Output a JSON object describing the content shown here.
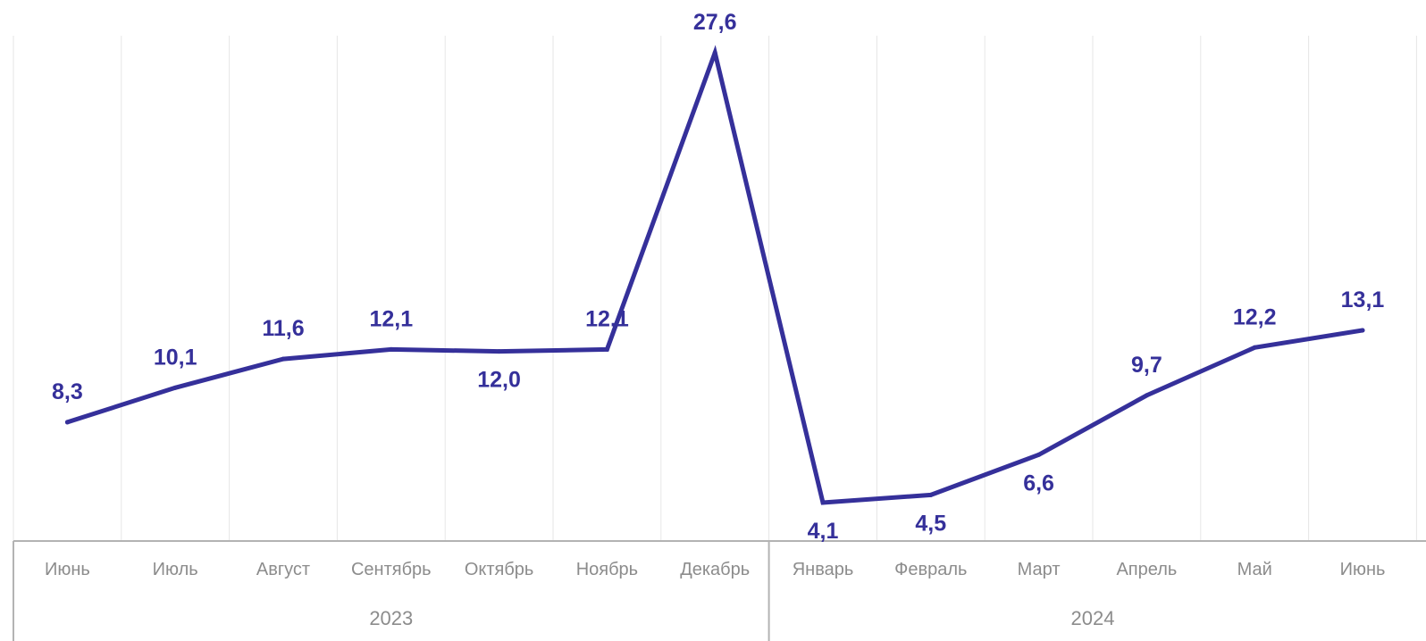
{
  "chart_data": {
    "type": "line",
    "title": "",
    "xlabel": "",
    "ylabel": "",
    "categories": [
      "Июнь",
      "Июль",
      "Август",
      "Сентябрь",
      "Октябрь",
      "Ноябрь",
      "Декабрь",
      "Январь",
      "Февраль",
      "Март",
      "Апрель",
      "Май",
      "Июнь"
    ],
    "category_groups": [
      {
        "label": "2023",
        "start": 0,
        "end": 6
      },
      {
        "label": "2024",
        "start": 7,
        "end": 12
      }
    ],
    "series": [
      {
        "values": [
          8.3,
          10.1,
          11.6,
          12.1,
          12.0,
          12.1,
          27.6,
          4.1,
          4.5,
          6.6,
          9.7,
          12.2,
          13.1
        ],
        "labels": [
          "8,3",
          "10,1",
          "11,6",
          "12,1",
          "12,0",
          "12,1",
          "27,6",
          "4,1",
          "4,5",
          "6,6",
          "9,7",
          "12,2",
          "13,1"
        ]
      }
    ],
    "grid": true,
    "y_axis_visible": false,
    "colors": {
      "line": "#35309a",
      "labels": "#35309a",
      "grid": "#e6e6e6",
      "axis": "#b3b3b3",
      "ticks": "#8c8c8c"
    }
  }
}
